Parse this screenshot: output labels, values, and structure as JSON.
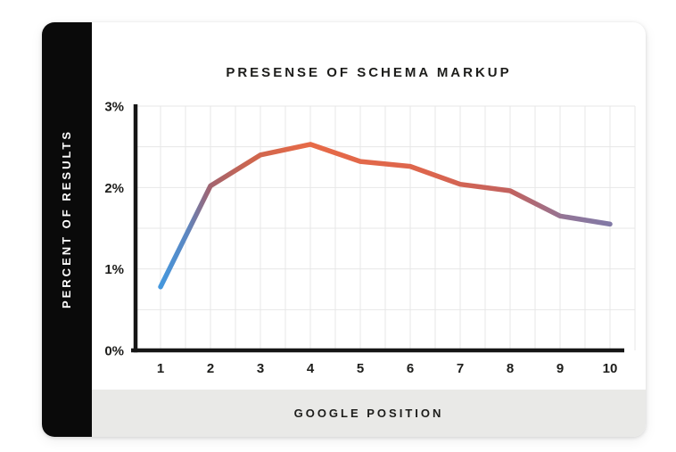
{
  "chart_data": {
    "type": "line",
    "title": "PRESENSE OF SCHEMA MARKUP",
    "xlabel": "GOOGLE POSITION",
    "ylabel": "PERCENT OF RESULTS",
    "x": [
      1,
      2,
      3,
      4,
      5,
      6,
      7,
      8,
      9,
      10
    ],
    "values": [
      0.78,
      2.02,
      2.4,
      2.53,
      2.32,
      2.26,
      2.04,
      1.96,
      1.65,
      1.55
    ],
    "ylim": [
      0,
      3
    ],
    "yticks": [
      {
        "value": 0,
        "label": "0%"
      },
      {
        "value": 1,
        "label": "1%"
      },
      {
        "value": 2,
        "label": "2%"
      },
      {
        "value": 3,
        "label": "3%"
      }
    ],
    "grid": {
      "x_minor_step": 0.5,
      "y_minor_step": 0.5,
      "on": true
    },
    "legend": "none",
    "line_gradient": [
      {
        "offset": 0.0,
        "color": "#4498de"
      },
      {
        "offset": 0.06,
        "color": "#5d86c0"
      },
      {
        "offset": 0.11,
        "color": "#a2636f"
      },
      {
        "offset": 0.2,
        "color": "#cd664f"
      },
      {
        "offset": 0.33,
        "color": "#e76a47"
      },
      {
        "offset": 0.6,
        "color": "#dc654d"
      },
      {
        "offset": 0.78,
        "color": "#c2625f"
      },
      {
        "offset": 0.9,
        "color": "#927597"
      },
      {
        "offset": 1.0,
        "color": "#8179a6"
      }
    ]
  },
  "colors": {
    "axis": "#161616",
    "grid": "#e7e7e7",
    "tick_text": "#1d1d1b",
    "sidebar_bg": "#0a0a0a",
    "band_bg": "#e9e9e7",
    "card_bg": "#ffffff"
  }
}
